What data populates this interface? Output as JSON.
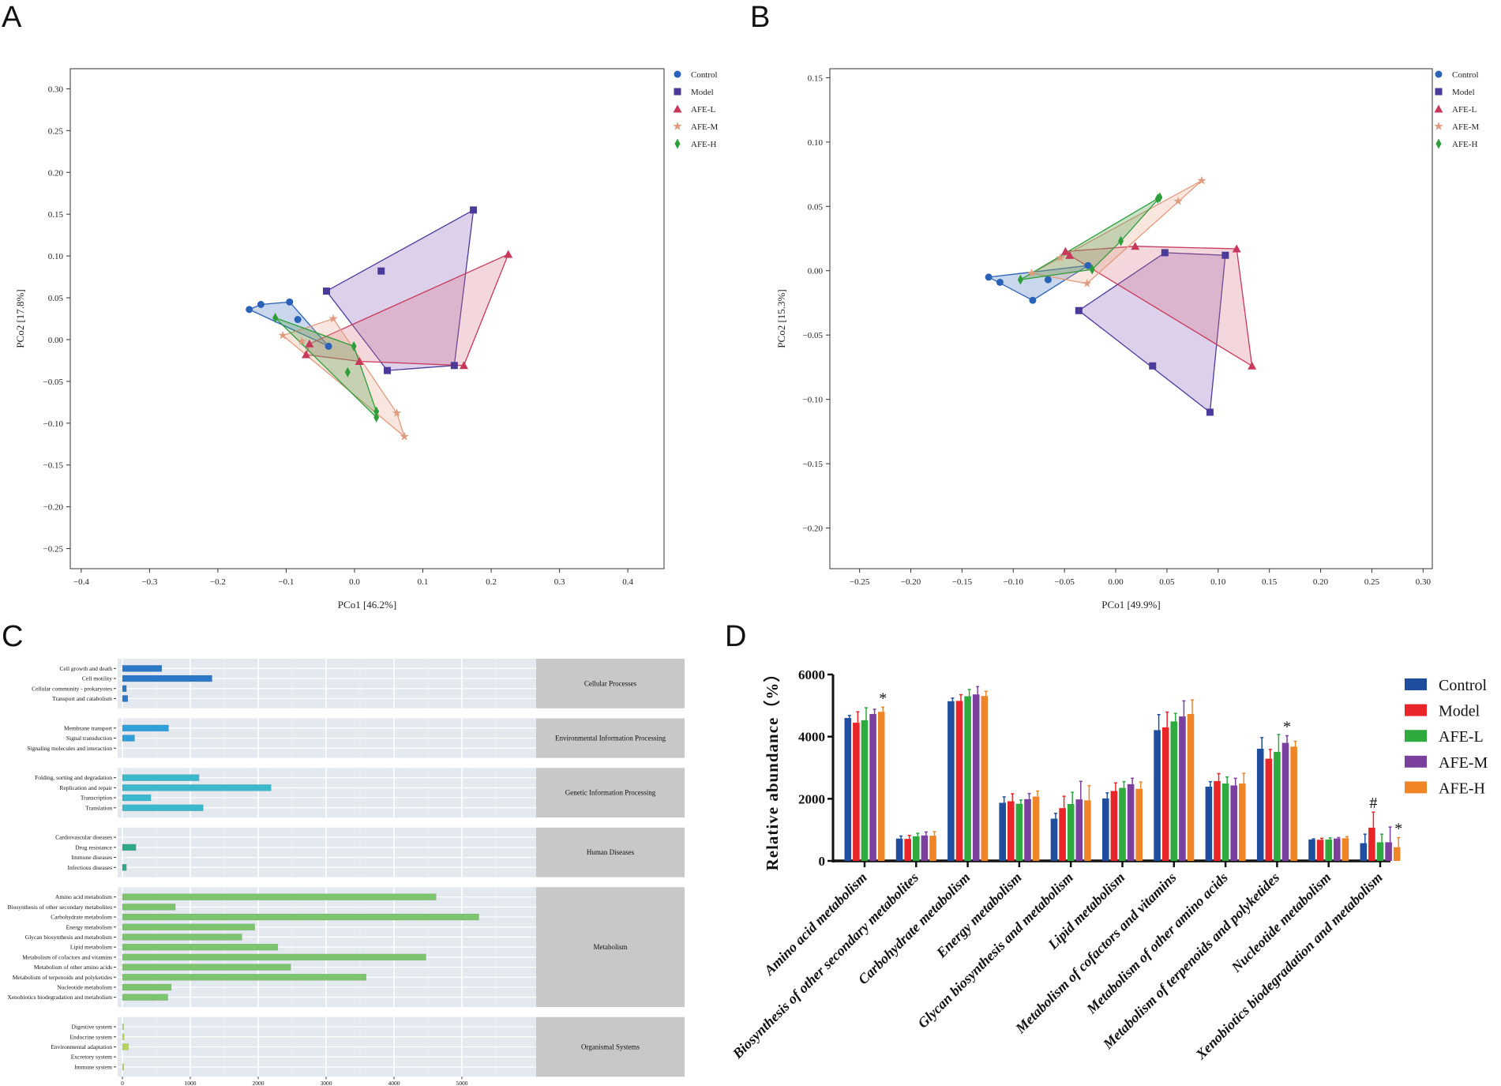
{
  "panels": {
    "A": "A",
    "B": "B",
    "C": "C",
    "D": "D"
  },
  "pcoa_colors": {
    "Control": "#2a62b8",
    "Model": "#4b3a9a",
    "AFE-L": "#c7385a",
    "AFE-M": "#e09a7e",
    "AFE-H": "#2e9e3a"
  },
  "pcoa_markers": {
    "Control": "circle",
    "Model": "square",
    "AFE-L": "triangle",
    "AFE-M": "star",
    "AFE-H": "diamond"
  },
  "chart_data": [
    {
      "id": "A",
      "type": "scatter",
      "xlabel": "PCo1 [46.2%]",
      "ylabel": "PCo2 [17.8%]",
      "xlim": [
        -0.416,
        0.453
      ],
      "ylim": [
        -0.274,
        0.324
      ],
      "xticks": [
        -0.4,
        -0.3,
        -0.2,
        -0.1,
        0.0,
        0.1,
        0.2,
        0.3,
        0.4
      ],
      "yticks": [
        -0.25,
        -0.2,
        -0.15,
        -0.1,
        -0.05,
        0.0,
        0.05,
        0.1,
        0.15,
        0.2,
        0.25,
        0.3
      ],
      "legend": "top-right-outside",
      "series": [
        {
          "name": "Control",
          "points": [
            [
              -0.154,
              0.036
            ],
            [
              -0.137,
              0.042
            ],
            [
              -0.095,
              0.045
            ],
            [
              -0.083,
              0.024
            ],
            [
              -0.038,
              -0.008
            ]
          ]
        },
        {
          "name": "Model",
          "points": [
            [
              0.174,
              0.155
            ],
            [
              0.039,
              0.082
            ],
            [
              -0.041,
              0.058
            ],
            [
              0.048,
              -0.037
            ],
            [
              0.146,
              -0.031
            ]
          ]
        },
        {
          "name": "AFE-L",
          "points": [
            [
              0.225,
              0.102
            ],
            [
              0.16,
              -0.031
            ],
            [
              0.007,
              -0.026
            ],
            [
              -0.066,
              -0.005
            ],
            [
              -0.071,
              -0.018
            ]
          ]
        },
        {
          "name": "AFE-M",
          "points": [
            [
              -0.105,
              0.005
            ],
            [
              -0.031,
              0.025
            ],
            [
              -0.077,
              -0.002
            ],
            [
              0.062,
              -0.088
            ],
            [
              0.073,
              -0.116
            ]
          ]
        },
        {
          "name": "AFE-H",
          "points": [
            [
              -0.116,
              0.026
            ],
            [
              -0.001,
              -0.008
            ],
            [
              -0.01,
              -0.039
            ],
            [
              0.032,
              -0.086
            ],
            [
              0.032,
              -0.093
            ]
          ]
        }
      ]
    },
    {
      "id": "B",
      "type": "scatter",
      "xlabel": "PCo1 [49.9%]",
      "ylabel": "PCo2 [15.3%]",
      "xlim": [
        -0.279,
        0.309
      ],
      "ylim": [
        -0.2316,
        0.157
      ],
      "xticks": [
        -0.25,
        -0.2,
        -0.15,
        -0.1,
        -0.05,
        0.0,
        0.05,
        0.1,
        0.15,
        0.2,
        0.25,
        0.3
      ],
      "yticks": [
        -0.2,
        -0.15,
        -0.1,
        -0.05,
        0.0,
        0.05,
        0.1,
        0.15
      ],
      "legend": "top-right-outside",
      "series": [
        {
          "name": "Control",
          "points": [
            [
              -0.124,
              -0.005
            ],
            [
              -0.113,
              -0.009
            ],
            [
              -0.081,
              -0.023
            ],
            [
              -0.066,
              -0.007
            ],
            [
              -0.027,
              0.004
            ]
          ]
        },
        {
          "name": "Model",
          "points": [
            [
              -0.036,
              -0.031
            ],
            [
              0.048,
              0.014
            ],
            [
              0.107,
              0.012
            ],
            [
              0.036,
              -0.074
            ],
            [
              0.092,
              -0.11
            ]
          ]
        },
        {
          "name": "AFE-L",
          "points": [
            [
              -0.049,
              0.015
            ],
            [
              -0.045,
              0.012
            ],
            [
              0.019,
              0.019
            ],
            [
              0.118,
              0.017
            ],
            [
              0.133,
              -0.074
            ]
          ]
        },
        {
          "name": "AFE-M",
          "points": [
            [
              -0.082,
              -0.002
            ],
            [
              -0.054,
              0.01
            ],
            [
              -0.028,
              -0.01
            ],
            [
              0.061,
              0.054
            ],
            [
              0.084,
              0.07
            ]
          ]
        },
        {
          "name": "AFE-H",
          "points": [
            [
              -0.093,
              -0.007
            ],
            [
              -0.023,
              0.001
            ],
            [
              0.005,
              0.023
            ],
            [
              0.041,
              0.056
            ],
            [
              0.043,
              0.057
            ]
          ]
        }
      ]
    },
    {
      "id": "C",
      "type": "bar",
      "orientation": "horizontal",
      "xlim": [
        0,
        6100
      ],
      "xticks": [
        0,
        1000,
        2000,
        3000,
        4000,
        5000
      ],
      "groups": [
        {
          "name": "Cellular Processes",
          "color": "#2b78c6",
          "categories": [
            "Cell growth and death",
            "Cell motility",
            "Cellular community - prokaryotes",
            "Transport and catabolism"
          ],
          "values": [
            580,
            1320,
            60,
            80
          ]
        },
        {
          "name": "Environmental Information Processing",
          "color": "#2f9fd8",
          "categories": [
            "Membrane transport",
            "Signal transduction",
            "Signaling molecules and interaction"
          ],
          "values": [
            680,
            180,
            0
          ]
        },
        {
          "name": "Genetic Information Processing",
          "color": "#3bb8cc",
          "categories": [
            "Folding, sorting and degradation",
            "Replication and repair",
            "Transcription",
            "Translation"
          ],
          "values": [
            1130,
            2190,
            420,
            1190
          ]
        },
        {
          "name": "Human Diseases",
          "color": "#2eaa88",
          "categories": [
            "Cardiovascular diseases",
            "Drug resistance",
            "Immune diseases",
            "Infectious diseases"
          ],
          "values": [
            0,
            200,
            0,
            60
          ]
        },
        {
          "name": "Metabolism",
          "color": "#7cc46e",
          "categories": [
            "Amino acid metabolism",
            "Biosynthesis of other secondary metabolites",
            "Carbohydrate metabolism",
            "Energy metabolism",
            "Glycan biosynthesis and metabolism",
            "Lipid metabolism",
            "Metabolism of cofactors and vitamins",
            "Metabolism of other amino acids",
            "Metabolism of terpenoids and polyketides",
            "Nucleotide metabolism",
            "Xenobiotics biodegradation and metabolism"
          ],
          "values": [
            4620,
            780,
            5250,
            1950,
            1760,
            2290,
            4470,
            2480,
            3590,
            720,
            670
          ]
        },
        {
          "name": "Organismal Systems",
          "color": "#b5d55a",
          "categories": [
            "Digestive system",
            "Endocrine system",
            "Environmental adaptation",
            "Excretory system",
            "Immune system"
          ],
          "values": [
            10,
            25,
            90,
            0,
            20
          ]
        }
      ]
    },
    {
      "id": "D",
      "type": "bar",
      "ylabel": "Relative abundance（%）",
      "ylim": [
        0,
        6000
      ],
      "yticks": [
        0,
        2000,
        4000,
        6000
      ],
      "legend": "right",
      "categories": [
        "Amino acid metabolism",
        "Biosynthesis of other secondary metabolites",
        "Carbohydrate metabolism",
        "Energy metabolism",
        "Glycan biosynthesis and metabolism",
        "Lipid metabolism",
        "Metabolism of cofactors and vitamins",
        "Metabolism of other amino acids",
        "Metabolism of terpenoids and polyketides",
        "Nucleotide metabolism",
        "Xenobiotics biodegradation and metabolism"
      ],
      "series": [
        {
          "name": "Control",
          "color": "#1f4e9e",
          "values": [
            4600,
            720,
            5140,
            1870,
            1360,
            2010,
            4210,
            2390,
            3610,
            690,
            570
          ],
          "errors": [
            80,
            80,
            100,
            190,
            170,
            180,
            500,
            160,
            360,
            20,
            290
          ]
        },
        {
          "name": "Model",
          "color": "#e8262a",
          "values": [
            4450,
            710,
            5150,
            1920,
            1700,
            2250,
            4300,
            2570,
            3290,
            680,
            1070
          ],
          "errors": [
            350,
            110,
            200,
            240,
            380,
            260,
            490,
            240,
            300,
            50,
            500
          ]
        },
        {
          "name": "AFE-L",
          "color": "#2eaa3f",
          "values": [
            4530,
            790,
            5300,
            1840,
            1830,
            2350,
            4490,
            2490,
            3510,
            690,
            600
          ],
          "errors": [
            400,
            100,
            220,
            120,
            380,
            200,
            260,
            210,
            560,
            50,
            260
          ]
        },
        {
          "name": "AFE-M",
          "color": "#7b3f9e",
          "values": [
            4730,
            820,
            5360,
            1990,
            1980,
            2470,
            4650,
            2430,
            3800,
            720,
            600
          ],
          "errors": [
            150,
            110,
            250,
            180,
            580,
            190,
            500,
            230,
            230,
            30,
            490
          ]
        },
        {
          "name": "AFE-H",
          "color": "#f08527",
          "values": [
            4800,
            810,
            5310,
            2070,
            1950,
            2320,
            4730,
            2490,
            3680,
            730,
            440
          ],
          "errors": [
            150,
            130,
            150,
            180,
            470,
            220,
            450,
            330,
            170,
            50,
            310
          ]
        }
      ],
      "annotations": [
        {
          "category": "Amino acid metabolism",
          "series": "AFE-H",
          "text": "*"
        },
        {
          "category": "Metabolism of terpenoids and polyketides",
          "series": "AFE-M",
          "text": "*"
        },
        {
          "category": "Xenobiotics biodegradation and metabolism",
          "series": "Model",
          "text": "#"
        },
        {
          "category": "Xenobiotics biodegradation and metabolism",
          "series": "AFE-H",
          "text": "*"
        }
      ]
    }
  ]
}
